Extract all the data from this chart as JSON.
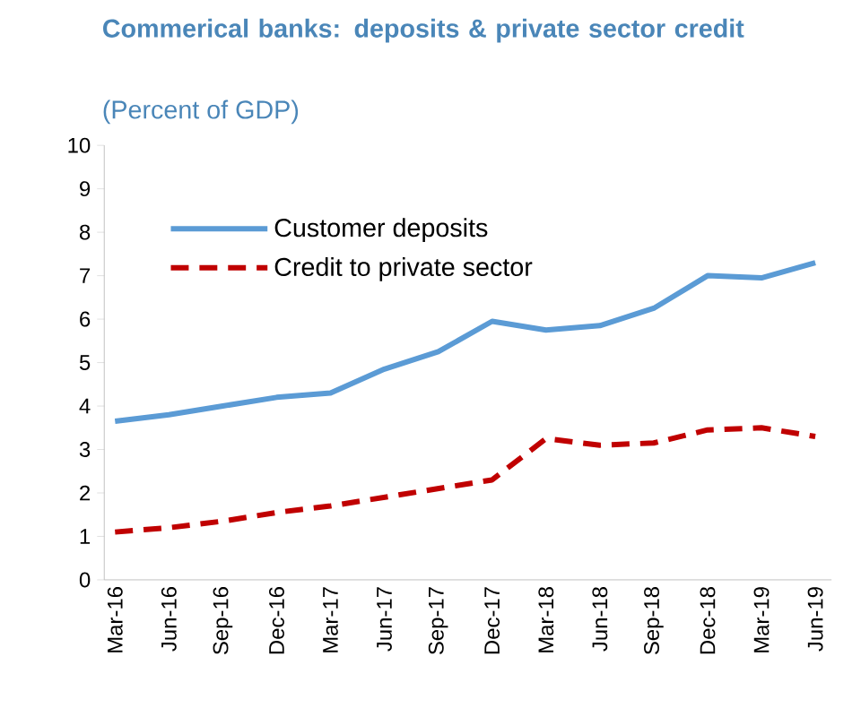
{
  "chart_data": {
    "type": "line",
    "title": "Commerical banks: deposits & private sector credit",
    "subtitle": "(Percent of GDP)",
    "categories": [
      "Mar-16",
      "Jun-16",
      "Sep-16",
      "Dec-16",
      "Mar-17",
      "Jun-17",
      "Sep-17",
      "Dec-17",
      "Mar-18",
      "Jun-18",
      "Sep-18",
      "Dec-18",
      "Mar-19",
      "Jun-19"
    ],
    "series": [
      {
        "name": "Customer deposits",
        "color": "#5b9bd5",
        "line_style": "solid",
        "values": [
          3.65,
          3.8,
          4.0,
          4.2,
          4.3,
          4.85,
          5.25,
          5.95,
          5.75,
          5.85,
          6.25,
          7.0,
          6.95,
          7.3
        ]
      },
      {
        "name": "Credit to private sector",
        "color": "#c00000",
        "line_style": "dashed",
        "values": [
          1.1,
          1.2,
          1.35,
          1.55,
          1.7,
          1.9,
          2.1,
          2.3,
          3.25,
          3.1,
          3.15,
          3.45,
          3.5,
          3.3
        ]
      }
    ],
    "ylim": [
      0,
      10
    ],
    "yticks": [
      0,
      1,
      2,
      3,
      4,
      5,
      6,
      7,
      8,
      9,
      10
    ],
    "grid": false,
    "legend": "top left",
    "marker": "none"
  }
}
